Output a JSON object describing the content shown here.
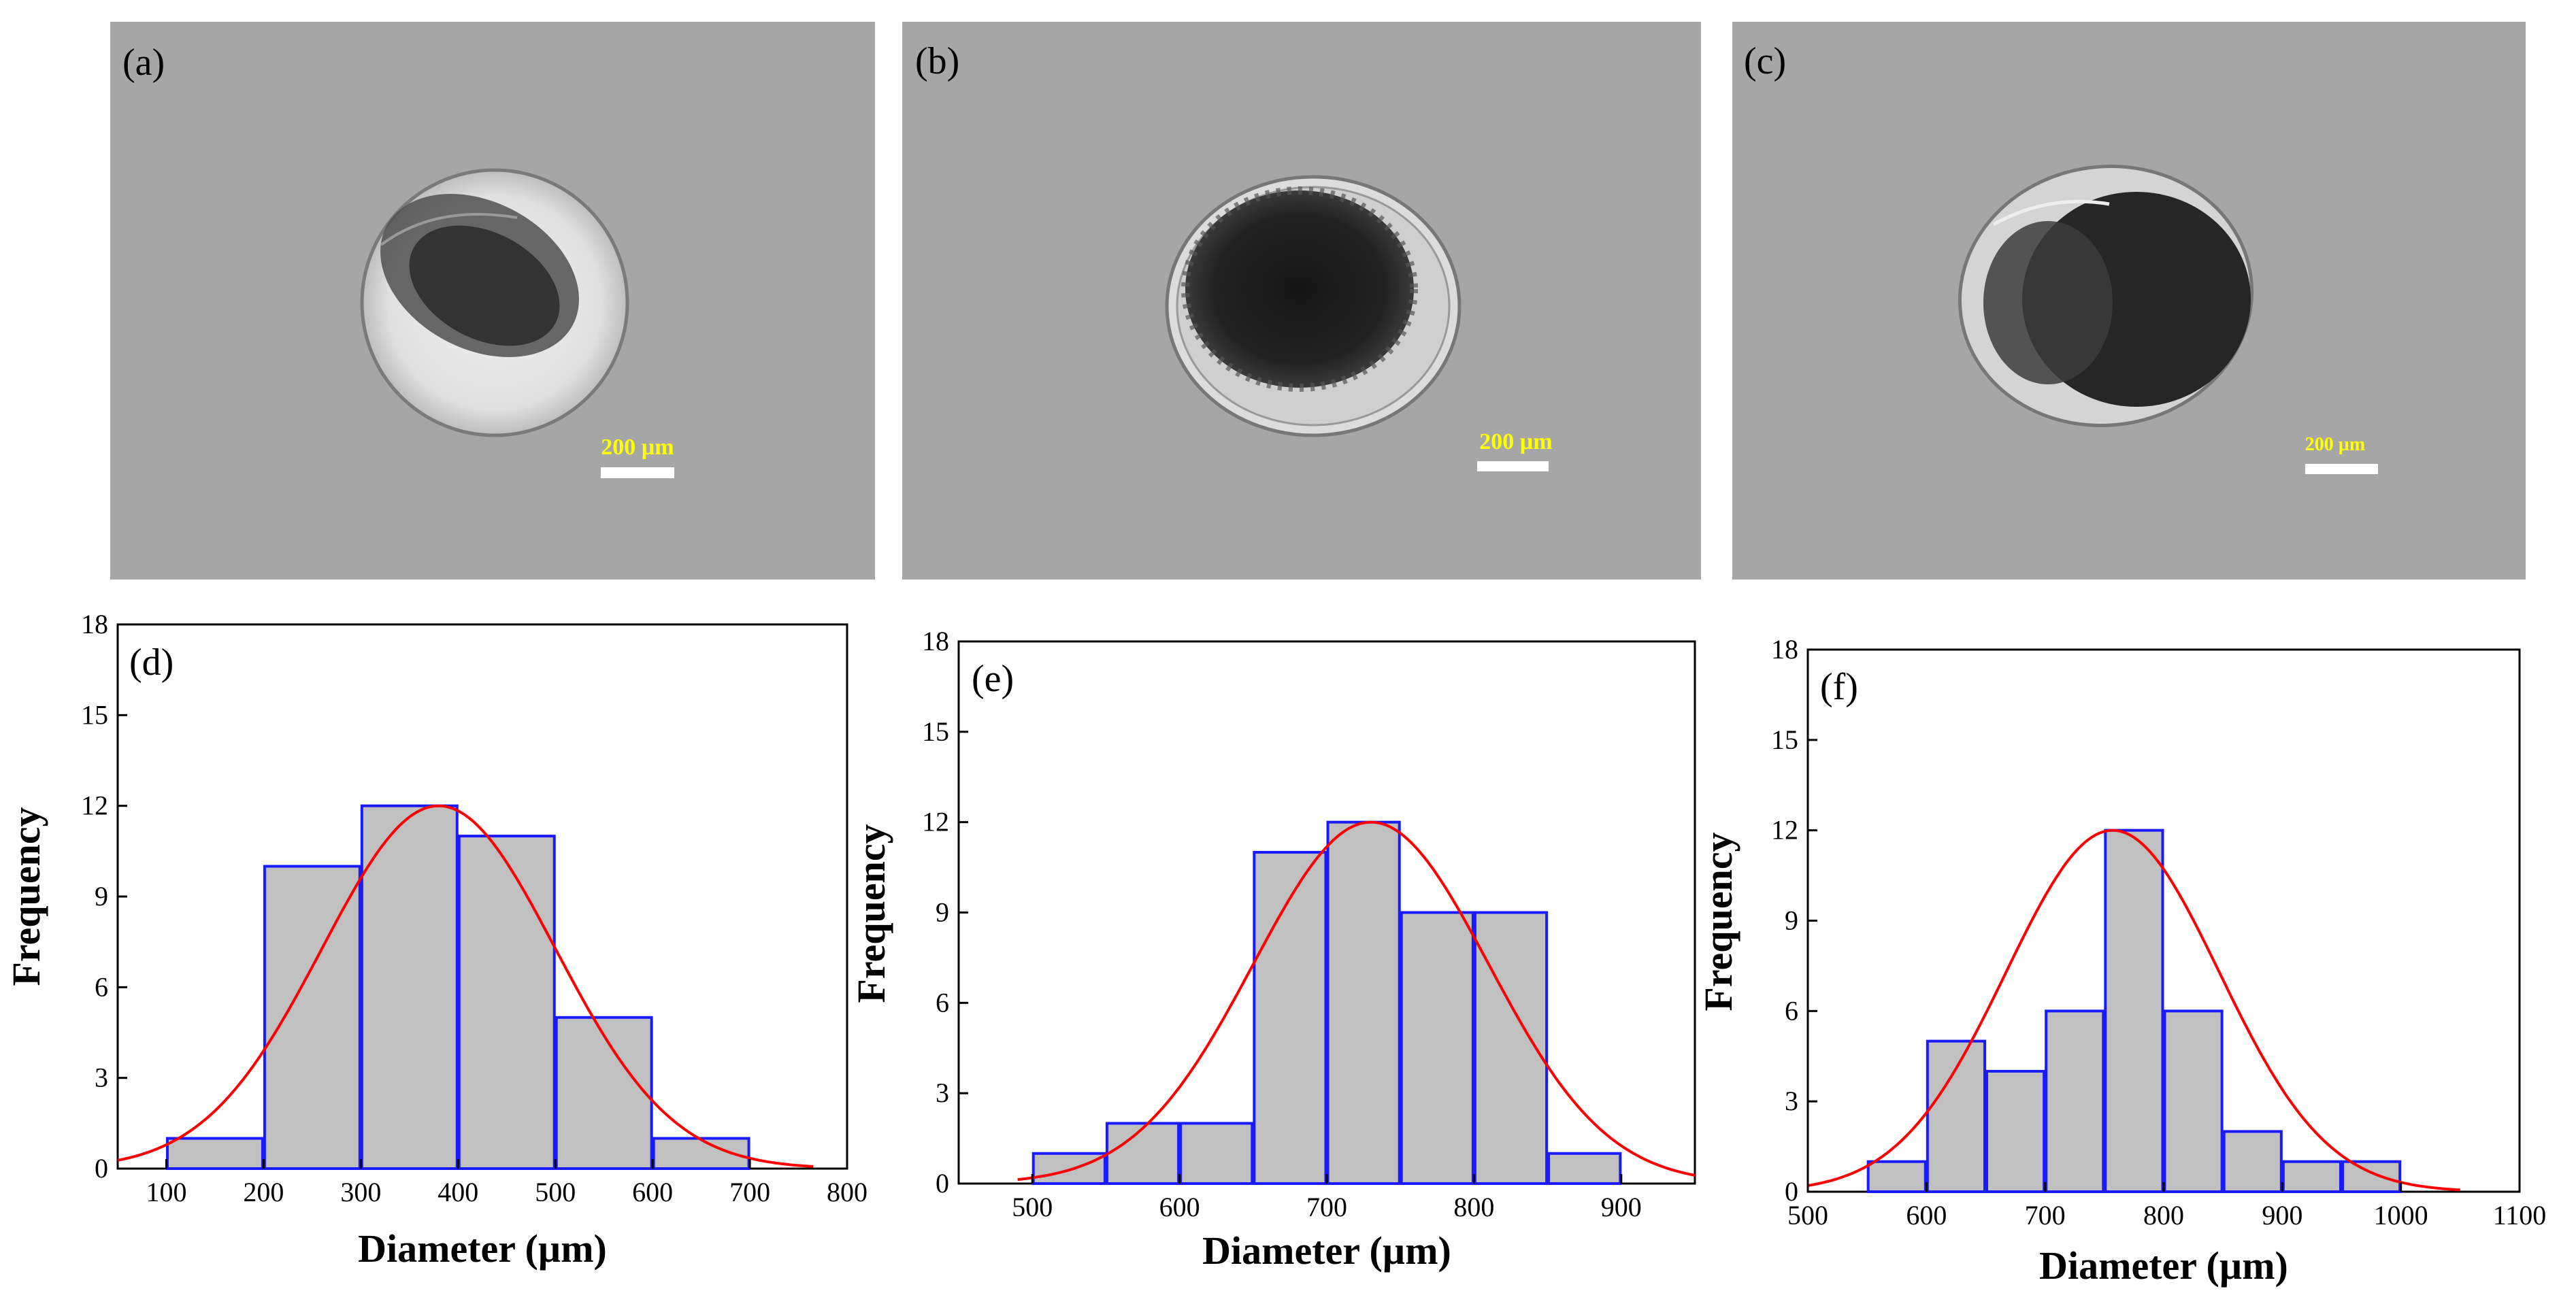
{
  "micrographs": [
    {
      "label": "(a)",
      "scale_bar": "200 µm"
    },
    {
      "label": "(b)",
      "scale_bar": "200 µm"
    },
    {
      "label": "(c)",
      "scale_bar": "200 µm"
    }
  ],
  "colors": {
    "photo_bg": "#a6a6a6",
    "bar_fill": "#c0c0c0",
    "bar_edge": "#1a1aff",
    "fit_curve": "#ff0000",
    "scale_text": "#ffff00"
  },
  "chart_data": [
    {
      "type": "bar",
      "panel_label": "(d)",
      "xlabel": "Diameter (µm)",
      "ylabel": "Frequency",
      "xlim": [
        50,
        800
      ],
      "ylim": [
        0,
        18
      ],
      "x_ticks": [
        100,
        200,
        300,
        400,
        500,
        600,
        700,
        800
      ],
      "y_ticks": [
        0,
        3,
        6,
        9,
        12,
        15,
        18
      ],
      "bin_edges": [
        100,
        200,
        300,
        400,
        500,
        600,
        700
      ],
      "values": [
        1,
        10,
        12,
        11,
        5,
        1
      ],
      "fit": {
        "type": "gaussian",
        "mean": 380,
        "sigma": 120,
        "peak": 12,
        "x_range": [
          50,
          765
        ]
      }
    },
    {
      "type": "bar",
      "panel_label": "(e)",
      "xlabel": "Diameter (µm)",
      "ylabel": "Frequency",
      "xlim": [
        450,
        950
      ],
      "ylim": [
        0,
        18
      ],
      "x_ticks": [
        500,
        600,
        700,
        800,
        900
      ],
      "y_ticks": [
        0,
        3,
        6,
        9,
        12,
        15,
        18
      ],
      "bin_edges": [
        500,
        550,
        600,
        650,
        700,
        750,
        800,
        850,
        900
      ],
      "values": [
        1,
        2,
        2,
        11,
        12,
        9,
        9,
        1
      ],
      "fit": {
        "type": "gaussian",
        "mean": 730,
        "sigma": 80,
        "peak": 12,
        "x_range": [
          490,
          950
        ]
      }
    },
    {
      "type": "bar",
      "panel_label": "(f)",
      "xlabel": "Diameter (µm)",
      "ylabel": "Frequency",
      "xlim": [
        500,
        1100
      ],
      "ylim": [
        0,
        18
      ],
      "x_ticks": [
        500,
        600,
        700,
        800,
        900,
        1000,
        1100
      ],
      "y_ticks": [
        0,
        3,
        6,
        9,
        12,
        15,
        18
      ],
      "bin_edges": [
        550,
        600,
        650,
        700,
        750,
        800,
        850,
        900,
        950,
        1000
      ],
      "values": [
        1,
        5,
        4,
        6,
        12,
        6,
        2,
        1,
        1
      ],
      "fit": {
        "type": "gaussian",
        "mean": 757,
        "sigma": 90,
        "peak": 12,
        "x_range": [
          500,
          1050
        ]
      }
    }
  ]
}
